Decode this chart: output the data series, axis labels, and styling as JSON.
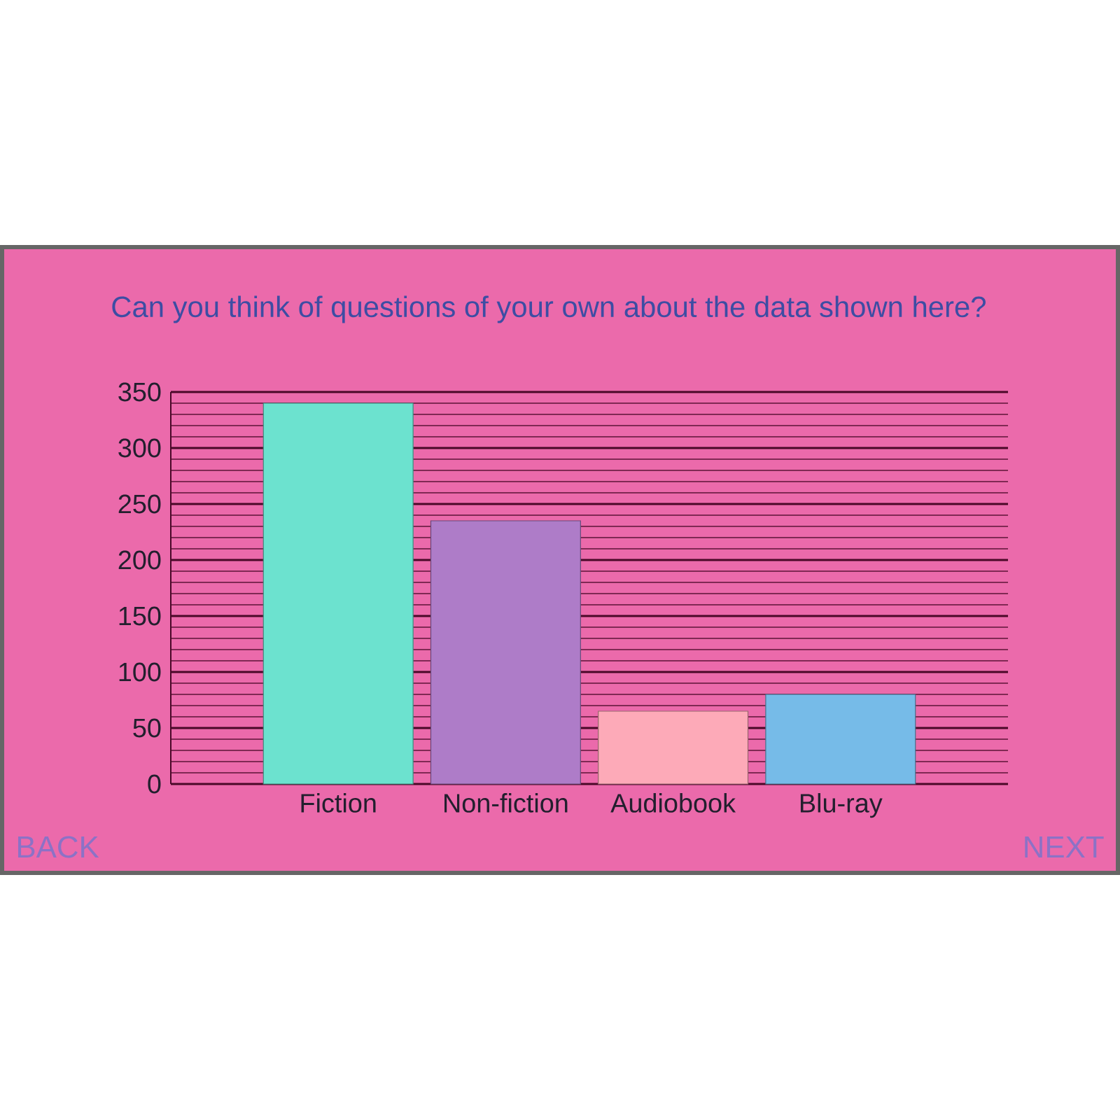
{
  "chart_data": {
    "type": "bar",
    "title": "Can you think of questions of your own about the data shown here?",
    "categories": [
      "Fiction",
      "Non-fiction",
      "Audiobook",
      "Blu-ray"
    ],
    "values": [
      340,
      235,
      65,
      80
    ],
    "colors": [
      "#6ce2cf",
      "#ae7cc8",
      "#fdaab8",
      "#76bbe8"
    ],
    "ylim": [
      0,
      350
    ],
    "yticks": [
      0,
      {
        "value": 10,
        "label": null
      },
      {
        "value": 20,
        "label": null
      },
      {
        "value": 30,
        "label": null
      },
      {
        "value": 40,
        "label": null
      },
      50,
      {
        "value": 60,
        "label": null
      },
      {
        "value": 70,
        "label": null
      },
      {
        "value": 80,
        "label": null
      },
      {
        "value": 90,
        "label": null
      },
      100,
      {
        "value": 110,
        "label": null
      },
      {
        "value": 120,
        "label": null
      },
      {
        "value": 130,
        "label": null
      },
      {
        "value": 140,
        "label": null
      },
      150,
      {
        "value": 160,
        "label": null
      },
      {
        "value": 170,
        "label": null
      },
      {
        "value": 180,
        "label": null
      },
      {
        "value": 190,
        "label": null
      },
      200,
      {
        "value": 210,
        "label": null
      },
      {
        "value": 220,
        "label": null
      },
      {
        "value": 230,
        "label": null
      },
      {
        "value": 240,
        "label": null
      },
      250,
      {
        "value": 260,
        "label": null
      },
      {
        "value": 270,
        "label": null
      },
      {
        "value": 280,
        "label": null
      },
      {
        "value": 290,
        "label": null
      },
      300,
      {
        "value": 310,
        "label": null
      },
      {
        "value": 320,
        "label": null
      },
      {
        "value": 330,
        "label": null
      },
      {
        "value": 340,
        "label": null
      },
      350
    ],
    "grid": "y",
    "annotations": [
      "BACK",
      "NEXT"
    ]
  }
}
